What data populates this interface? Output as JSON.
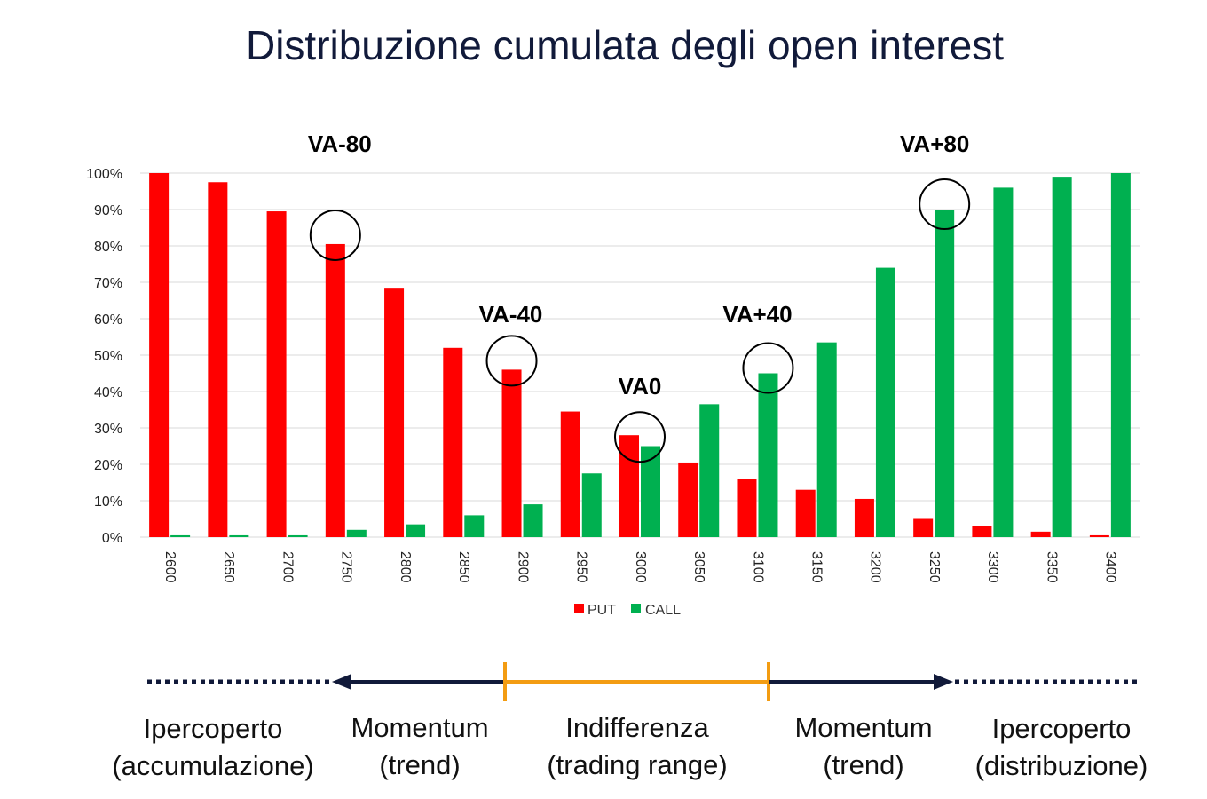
{
  "title": "Distribuzione cumulata degli open interest",
  "chart_data": {
    "type": "bar",
    "categories": [
      "2600",
      "2650",
      "2700",
      "2750",
      "2800",
      "2850",
      "2900",
      "2950",
      "3000",
      "3050",
      "3100",
      "3150",
      "3200",
      "3250",
      "3300",
      "3350",
      "3400"
    ],
    "series": [
      {
        "name": "PUT",
        "color": "#ff0000",
        "values": [
          100,
          97.5,
          89.5,
          80.5,
          68.5,
          52,
          46,
          34.5,
          28,
          20.5,
          16,
          13,
          10.5,
          5,
          3,
          1.5,
          0.5
        ]
      },
      {
        "name": "CALL",
        "color": "#00b050",
        "values": [
          0.5,
          0.5,
          0.5,
          2,
          3.5,
          6,
          9,
          17.5,
          25,
          36.5,
          45,
          53.5,
          74,
          90,
          96,
          99,
          100
        ]
      }
    ],
    "ylim": [
      0,
      100
    ],
    "yticks": [
      "0%",
      "10%",
      "20%",
      "30%",
      "40%",
      "50%",
      "60%",
      "70%",
      "80%",
      "90%",
      "100%"
    ],
    "grid": true,
    "legend_position": "bottom",
    "annotations": [
      {
        "label": "VA-80",
        "category": "2750"
      },
      {
        "label": "VA-40",
        "category": "2900"
      },
      {
        "label": "VA0",
        "category": "3000"
      },
      {
        "label": "VA+40",
        "category": "3100"
      },
      {
        "label": "VA+80",
        "category": "3250"
      }
    ]
  },
  "zones": [
    {
      "line1": "Ipercoperto",
      "line2": "(accumulazione)"
    },
    {
      "line1": "Momentum",
      "line2": "(trend)"
    },
    {
      "line1": "Indifferenza",
      "line2": "(trading range)"
    },
    {
      "line1": "Momentum",
      "line2": "(trend)"
    },
    {
      "line1": "Ipercoperto",
      "line2": "(distribuzione)"
    }
  ],
  "colors": {
    "put": "#ff0000",
    "call": "#00b050",
    "axis_line": "#111a3a",
    "range_line": "#f39c12",
    "gridline": "#d9d9d9"
  }
}
